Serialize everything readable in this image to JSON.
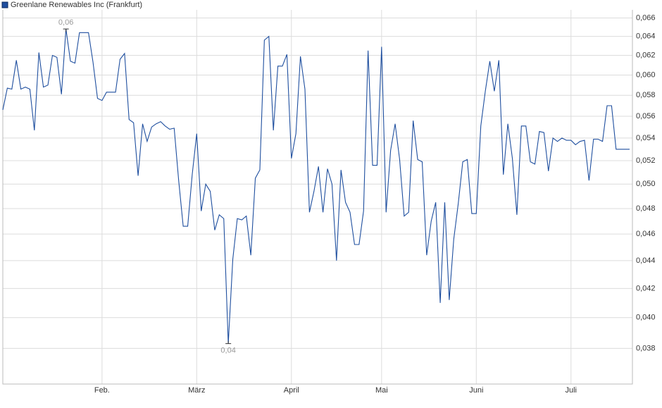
{
  "chart_data": {
    "type": "line",
    "title": "Greenlane Renewables Inc (Frankfurt)",
    "log_scale": true,
    "grid": true,
    "legend": "top-left",
    "max_label": "0,06",
    "min_label": "0,04",
    "ylim": [
      0.0358,
      0.0669
    ],
    "yticks": [
      {
        "value": 0.038,
        "label": "0,038"
      },
      {
        "value": 0.04,
        "label": "0,040"
      },
      {
        "value": 0.042,
        "label": "0,042"
      },
      {
        "value": 0.044,
        "label": "0,044"
      },
      {
        "value": 0.046,
        "label": "0,046"
      },
      {
        "value": 0.048,
        "label": "0,048"
      },
      {
        "value": 0.05,
        "label": "0,050"
      },
      {
        "value": 0.052,
        "label": "0,052"
      },
      {
        "value": 0.054,
        "label": "0,054"
      },
      {
        "value": 0.056,
        "label": "0,056"
      },
      {
        "value": 0.058,
        "label": "0,058"
      },
      {
        "value": 0.06,
        "label": "0,060"
      },
      {
        "value": 0.062,
        "label": "0,062"
      },
      {
        "value": 0.064,
        "label": "0,064"
      },
      {
        "value": 0.066,
        "label": "0,066"
      }
    ],
    "xticks": [
      {
        "value": 22,
        "label": "Feb."
      },
      {
        "value": 43,
        "label": "März"
      },
      {
        "value": 64,
        "label": "April"
      },
      {
        "value": 84,
        "label": "Mai"
      },
      {
        "value": 105,
        "label": "Juni"
      },
      {
        "value": 126,
        "label": "Juli"
      }
    ],
    "series": [
      {
        "name": "Greenlane Renewables Inc (Frankfurt)",
        "color": "#1f4f9f",
        "values": [
          0.0566,
          0.0587,
          0.0586,
          0.0615,
          0.0586,
          0.0588,
          0.0586,
          0.0547,
          0.0623,
          0.0588,
          0.059,
          0.062,
          0.0618,
          0.0581,
          0.0648,
          0.0614,
          0.0612,
          0.0644,
          0.0644,
          0.0644,
          0.0613,
          0.0577,
          0.0575,
          0.0583,
          0.0583,
          0.0583,
          0.0616,
          0.0622,
          0.0557,
          0.0554,
          0.0507,
          0.0553,
          0.0537,
          0.055,
          0.0553,
          0.0555,
          0.0551,
          0.0548,
          0.0549,
          0.0503,
          0.0466,
          0.0466,
          0.0508,
          0.0544,
          0.0478,
          0.05,
          0.0494,
          0.0463,
          0.0475,
          0.0472,
          0.0383,
          0.0441,
          0.0472,
          0.0471,
          0.0474,
          0.0444,
          0.0505,
          0.0512,
          0.0636,
          0.064,
          0.0547,
          0.0609,
          0.0609,
          0.0621,
          0.0522,
          0.0544,
          0.0619,
          0.0586,
          0.0477,
          0.0494,
          0.0515,
          0.0477,
          0.0513,
          0.05,
          0.044,
          0.0512,
          0.0485,
          0.0477,
          0.0452,
          0.0452,
          0.0478,
          0.0625,
          0.0516,
          0.0516,
          0.0629,
          0.0477,
          0.0529,
          0.0553,
          0.0521,
          0.0474,
          0.0477,
          0.0556,
          0.0521,
          0.0519,
          0.0444,
          0.047,
          0.0485,
          0.041,
          0.0485,
          0.0412,
          0.0456,
          0.0484,
          0.0519,
          0.0521,
          0.0476,
          0.0476,
          0.0551,
          0.0584,
          0.0614,
          0.0584,
          0.0615,
          0.0508,
          0.0553,
          0.0522,
          0.0475,
          0.0551,
          0.0551,
          0.0519,
          0.0517,
          0.0546,
          0.0545,
          0.0511,
          0.054,
          0.0537,
          0.054,
          0.0538,
          0.0538,
          0.0534,
          0.0537,
          0.0538,
          0.0503,
          0.0539,
          0.0539,
          0.0537,
          0.057,
          0.057,
          0.053,
          0.053,
          0.053,
          0.053
        ]
      }
    ]
  }
}
